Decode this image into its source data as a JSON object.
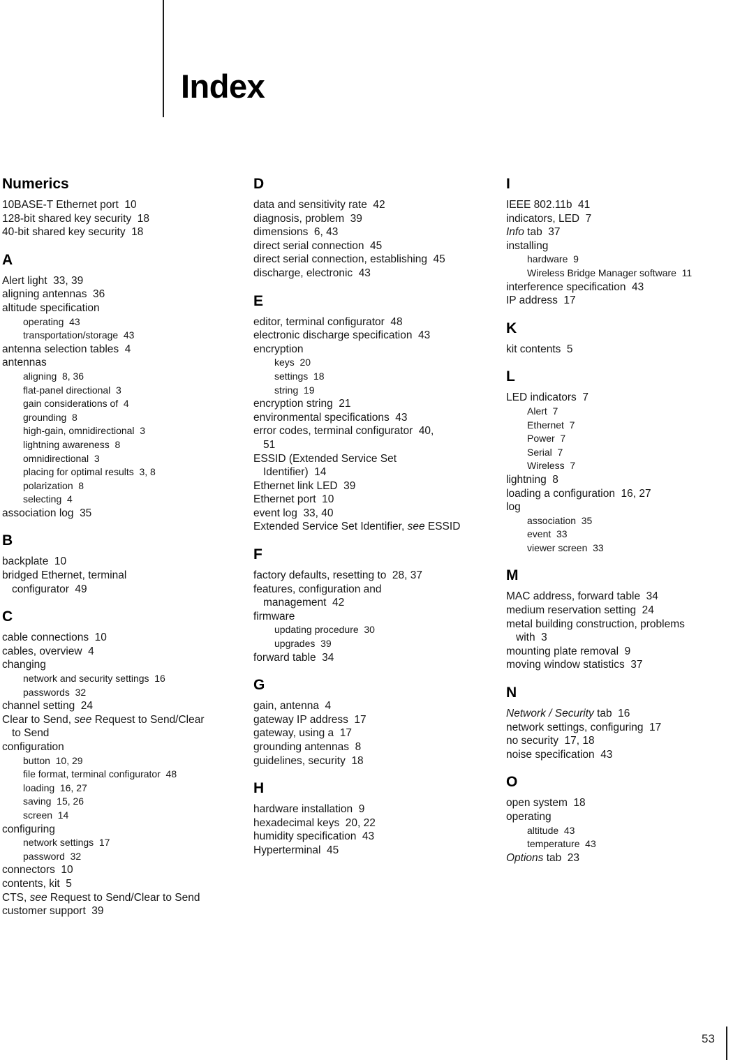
{
  "title": "Index",
  "footer": {
    "page_number": "53"
  },
  "columns": [
    {
      "sections": [
        {
          "heading": "Numerics",
          "entries": [
            {
              "t": "10BASE-T Ethernet port",
              "pages": "10"
            },
            {
              "t": "128-bit shared key security",
              "pages": "18"
            },
            {
              "t": "40-bit shared key security",
              "pages": "18"
            }
          ]
        },
        {
          "heading": "A",
          "entries": [
            {
              "t": "Alert light",
              "pages": "33, 39"
            },
            {
              "t": "aligning antennas",
              "pages": "36"
            },
            {
              "t": "altitude specification"
            },
            {
              "t": "operating",
              "pages": "43",
              "sub": true
            },
            {
              "t": "transportation/storage",
              "pages": "43",
              "sub": true
            },
            {
              "t": "antenna selection tables",
              "pages": "4"
            },
            {
              "t": "antennas"
            },
            {
              "t": "aligning",
              "pages": "8, 36",
              "sub": true
            },
            {
              "t": "flat-panel directional",
              "pages": "3",
              "sub": true
            },
            {
              "t": "gain considerations of",
              "pages": "4",
              "sub": true
            },
            {
              "t": "grounding",
              "pages": "8",
              "sub": true
            },
            {
              "t": "high-gain, omnidirectional",
              "pages": "3",
              "sub": true
            },
            {
              "t": "lightning awareness",
              "pages": "8",
              "sub": true
            },
            {
              "t": "omnidirectional",
              "pages": "3",
              "sub": true
            },
            {
              "t": "placing for optimal results",
              "pages": "3, 8",
              "sub": true
            },
            {
              "t": "polarization",
              "pages": "8",
              "sub": true
            },
            {
              "t": "selecting",
              "pages": "4",
              "sub": true
            },
            {
              "t": "association log",
              "pages": "35"
            }
          ]
        },
        {
          "heading": "B",
          "entries": [
            {
              "t": "backplate",
              "pages": "10"
            },
            {
              "runs": [
                [
                  "bridged Ethernet, terminal",
                  ""
                ],
                [
                  "",
                  "br"
                ],
                [
                  "configurator",
                  ""
                ]
              ],
              "pages": "49"
            }
          ]
        },
        {
          "heading": "C",
          "entries": [
            {
              "t": "cable connections",
              "pages": "10"
            },
            {
              "t": "cables, overview",
              "pages": "4"
            },
            {
              "t": "changing"
            },
            {
              "t": "network and security settings",
              "pages": "16",
              "sub": true
            },
            {
              "t": "passwords",
              "pages": "32",
              "sub": true
            },
            {
              "t": "channel setting",
              "pages": "24"
            },
            {
              "runs": [
                [
                  "Clear to Send, ",
                  ""
                ],
                [
                  "see",
                  "i"
                ],
                [
                  " Request to Send/Clear",
                  ""
                ],
                [
                  "",
                  "br"
                ],
                [
                  "to Send",
                  ""
                ]
              ]
            },
            {
              "t": "configuration"
            },
            {
              "t": "button",
              "pages": "10, 29",
              "sub": true
            },
            {
              "t": "file format, terminal configurator",
              "pages": "48",
              "sub": true
            },
            {
              "t": "loading",
              "pages": "16, 27",
              "sub": true
            },
            {
              "t": "saving",
              "pages": "15, 26",
              "sub": true
            },
            {
              "t": "screen",
              "pages": "14",
              "sub": true
            },
            {
              "t": "configuring"
            },
            {
              "t": "network settings",
              "pages": "17",
              "sub": true
            },
            {
              "t": "password",
              "pages": "32",
              "sub": true
            },
            {
              "t": "connectors",
              "pages": "10"
            },
            {
              "t": "contents, kit",
              "pages": "5"
            },
            {
              "runs": [
                [
                  "CTS, ",
                  ""
                ],
                [
                  "see",
                  "i"
                ],
                [
                  " Request to Send/Clear to Send",
                  ""
                ]
              ]
            },
            {
              "t": "customer support",
              "pages": "39"
            }
          ]
        }
      ]
    },
    {
      "sections": [
        {
          "heading": "D",
          "entries": [
            {
              "t": "data and sensitivity rate",
              "pages": "42"
            },
            {
              "t": "diagnosis, problem",
              "pages": "39"
            },
            {
              "t": "dimensions",
              "pages": "6, 43"
            },
            {
              "t": "direct serial connection",
              "pages": "45"
            },
            {
              "t": "direct serial connection, establishing",
              "pages": "45"
            },
            {
              "t": "discharge, electronic",
              "pages": "43"
            }
          ]
        },
        {
          "heading": "E",
          "entries": [
            {
              "t": "editor, terminal configurator",
              "pages": "48"
            },
            {
              "t": "electronic discharge specification",
              "pages": "43"
            },
            {
              "t": "encryption"
            },
            {
              "t": "keys",
              "pages": "20",
              "sub": true
            },
            {
              "t": "settings",
              "pages": "18",
              "sub": true
            },
            {
              "t": "string",
              "pages": "19",
              "sub": true
            },
            {
              "t": "encryption string",
              "pages": "21"
            },
            {
              "t": "environmental specifications",
              "pages": "43"
            },
            {
              "runs": [
                [
                  "error codes, terminal configurator",
                  ""
                ],
                [
                  "40,",
                  "p"
                ],
                [
                  "",
                  "br"
                ],
                [
                  "51",
                  ""
                ]
              ]
            },
            {
              "runs": [
                [
                  "ESSID (Extended Service Set",
                  ""
                ],
                [
                  "",
                  "br"
                ],
                [
                  "Identifier)",
                  ""
                ]
              ],
              "pages": "14"
            },
            {
              "t": "Ethernet link LED",
              "pages": "39"
            },
            {
              "t": "Ethernet port",
              "pages": "10"
            },
            {
              "t": "event log",
              "pages": "33, 40"
            },
            {
              "runs": [
                [
                  "Extended Service Set Identifier, ",
                  ""
                ],
                [
                  "see",
                  "i"
                ],
                [
                  " ESSID",
                  ""
                ]
              ]
            }
          ]
        },
        {
          "heading": "F",
          "entries": [
            {
              "t": "factory defaults, resetting to",
              "pages": "28, 37"
            },
            {
              "runs": [
                [
                  "features, configuration and",
                  ""
                ],
                [
                  "",
                  "br"
                ],
                [
                  "management",
                  ""
                ]
              ],
              "pages": "42"
            },
            {
              "t": "firmware"
            },
            {
              "t": "updating procedure",
              "pages": "30",
              "sub": true
            },
            {
              "t": "upgrades",
              "pages": "39",
              "sub": true
            },
            {
              "t": "forward table",
              "pages": "34"
            }
          ]
        },
        {
          "heading": "G",
          "entries": [
            {
              "t": "gain, antenna",
              "pages": "4"
            },
            {
              "t": "gateway IP address",
              "pages": "17"
            },
            {
              "t": "gateway, using a",
              "pages": "17"
            },
            {
              "t": "grounding antennas",
              "pages": "8"
            },
            {
              "t": "guidelines, security",
              "pages": "18"
            }
          ]
        },
        {
          "heading": "H",
          "entries": [
            {
              "t": "hardware installation",
              "pages": "9"
            },
            {
              "t": "hexadecimal keys",
              "pages": "20, 22"
            },
            {
              "t": "humidity specification",
              "pages": "43"
            },
            {
              "t": "Hyperterminal",
              "pages": "45"
            }
          ]
        }
      ]
    },
    {
      "sections": [
        {
          "heading": "I",
          "entries": [
            {
              "t": "IEEE 802.11b",
              "pages": "41"
            },
            {
              "t": "indicators, LED",
              "pages": "7"
            },
            {
              "runs": [
                [
                  "Info",
                  "i"
                ],
                [
                  " tab",
                  ""
                ]
              ],
              "pages": "37"
            },
            {
              "t": "installing"
            },
            {
              "t": "hardware",
              "pages": "9",
              "sub": true
            },
            {
              "t": "Wireless Bridge Manager software",
              "pages": "11",
              "sub": true
            },
            {
              "t": "interference specification",
              "pages": "43"
            },
            {
              "t": "IP address",
              "pages": "17"
            }
          ]
        },
        {
          "heading": "K",
          "entries": [
            {
              "t": "kit contents",
              "pages": "5"
            }
          ]
        },
        {
          "heading": "L",
          "entries": [
            {
              "t": "LED indicators",
              "pages": "7"
            },
            {
              "t": "Alert",
              "pages": "7",
              "sub": true
            },
            {
              "t": "Ethernet",
              "pages": "7",
              "sub": true
            },
            {
              "t": "Power",
              "pages": "7",
              "sub": true
            },
            {
              "t": "Serial",
              "pages": "7",
              "sub": true
            },
            {
              "t": "Wireless",
              "pages": "7",
              "sub": true
            },
            {
              "t": "lightning",
              "pages": "8"
            },
            {
              "t": "loading a configuration",
              "pages": "16, 27"
            },
            {
              "t": "log"
            },
            {
              "t": "association",
              "pages": "35",
              "sub": true
            },
            {
              "t": "event",
              "pages": "33",
              "sub": true
            },
            {
              "t": "viewer screen",
              "pages": "33",
              "sub": true
            }
          ]
        },
        {
          "heading": "M",
          "entries": [
            {
              "t": "MAC address, forward table",
              "pages": "34"
            },
            {
              "t": "medium reservation setting",
              "pages": "24"
            },
            {
              "runs": [
                [
                  "metal building construction, problems",
                  ""
                ],
                [
                  "",
                  "br"
                ],
                [
                  "with",
                  ""
                ]
              ],
              "pages": "3"
            },
            {
              "t": "mounting plate removal",
              "pages": "9"
            },
            {
              "t": "moving window statistics",
              "pages": "37"
            }
          ]
        },
        {
          "heading": "N",
          "entries": [
            {
              "runs": [
                [
                  "Network / Security",
                  "i"
                ],
                [
                  " tab",
                  ""
                ]
              ],
              "pages": "16"
            },
            {
              "t": "network settings, configuring",
              "pages": "17"
            },
            {
              "t": "no security",
              "pages": "17, 18"
            },
            {
              "t": "noise specification",
              "pages": "43"
            }
          ]
        },
        {
          "heading": "O",
          "entries": [
            {
              "t": "open system",
              "pages": "18"
            },
            {
              "t": "operating"
            },
            {
              "t": "altitude",
              "pages": "43",
              "sub": true
            },
            {
              "t": "temperature",
              "pages": "43",
              "sub": true
            },
            {
              "runs": [
                [
                  "Options",
                  "i"
                ],
                [
                  " tab",
                  ""
                ]
              ],
              "pages": "23"
            }
          ]
        }
      ]
    }
  ]
}
